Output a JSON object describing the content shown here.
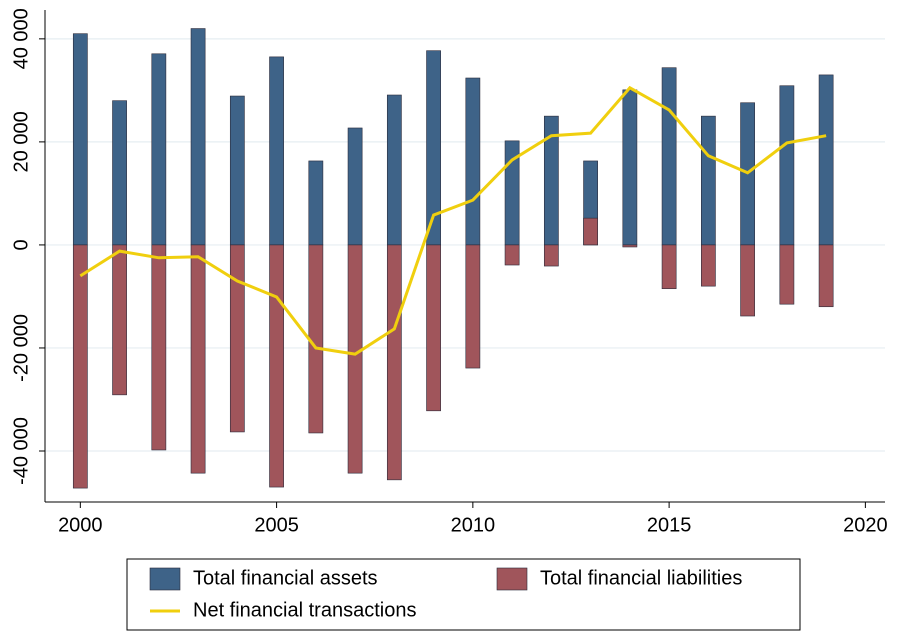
{
  "chart_data": {
    "type": "bar",
    "x": [
      2000,
      2001,
      2002,
      2003,
      2004,
      2005,
      2006,
      2007,
      2008,
      2009,
      2010,
      2011,
      2012,
      2013,
      2014,
      2015,
      2016,
      2017,
      2018,
      2019
    ],
    "series": [
      {
        "name": "Total financial assets",
        "type": "bar",
        "color": "#3e6388",
        "values": [
          41000,
          28000,
          37100,
          42000,
          28900,
          36500,
          16300,
          22700,
          29100,
          37700,
          32400,
          20200,
          25000,
          16300,
          30100,
          34400,
          25000,
          27600,
          30900,
          33000
        ]
      },
      {
        "name": "Total financial liabilities",
        "type": "bar",
        "color": "#a0555b",
        "values": [
          -47200,
          -29100,
          -39800,
          -44300,
          -36300,
          -47000,
          -36500,
          -44300,
          -45600,
          -32200,
          -23900,
          -3900,
          -4100,
          5200,
          -400,
          -8500,
          -8000,
          -13800,
          -11500,
          -12000
        ]
      },
      {
        "name": "Net financial transactions",
        "type": "line",
        "color": "#f0cf0e",
        "values": [
          -6000,
          -1200,
          -2500,
          -2300,
          -7000,
          -10100,
          -20000,
          -21200,
          -16300,
          5800,
          8700,
          16500,
          21200,
          21700,
          30500,
          26200,
          17300,
          14000,
          19800,
          21200
        ]
      }
    ],
    "xlim": [
      1999.1,
      2020.5
    ],
    "xticks": [
      2000,
      2005,
      2010,
      2015,
      2020
    ],
    "ylim": [
      -49900,
      45600
    ],
    "yticks": [
      {
        "value": -40000,
        "label": "-40 000"
      },
      {
        "value": -20000,
        "label": "-20 000"
      },
      0,
      {
        "value": 20000,
        "label": "20 000"
      },
      {
        "value": 40000,
        "label": "40 000"
      }
    ],
    "grid": true,
    "legend": "bottom"
  }
}
